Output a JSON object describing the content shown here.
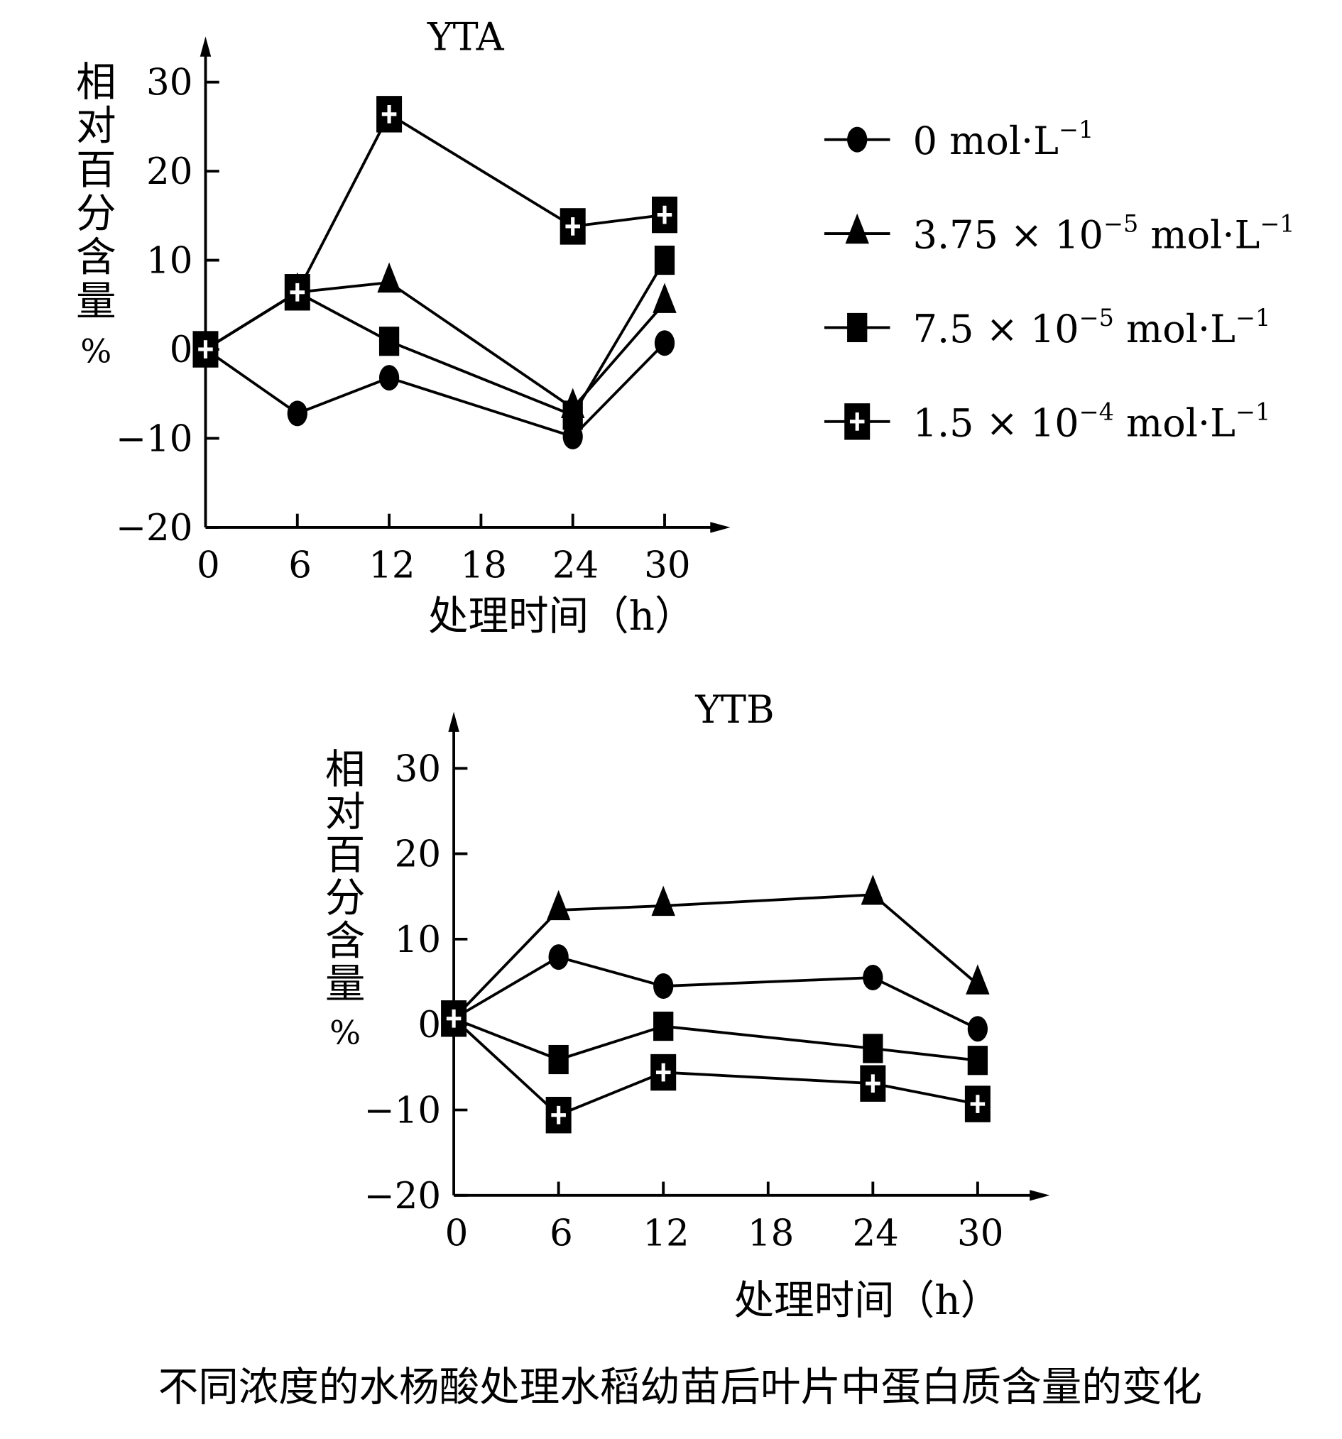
{
  "chart_data": [
    {
      "type": "line",
      "title": "YTA",
      "xlabel": "处理时间（h）",
      "ylabel": "相对百分含量%",
      "x_ticks": [
        0,
        6,
        12,
        18,
        24,
        30
      ],
      "y_ticks": [
        -20,
        -10,
        0,
        10,
        20,
        30
      ],
      "xlim": [
        0,
        30
      ],
      "ylim": [
        -20,
        30
      ],
      "x": [
        0,
        6,
        12,
        24,
        30
      ],
      "series": [
        {
          "name": "0 mol·L⁻¹",
          "marker": "circle",
          "values": [
            0,
            -7.2,
            -3.2,
            -9.8,
            0.7
          ]
        },
        {
          "name": "3.75×10⁻⁵ mol·L⁻¹",
          "marker": "triangle",
          "values": [
            0,
            6.4,
            7.5,
            -6.6,
            5.2
          ]
        },
        {
          "name": "7.5×10⁻⁵ mol·L⁻¹",
          "marker": "square",
          "values": [
            0,
            6.4,
            0.9,
            -7.4,
            10
          ]
        },
        {
          "name": "1.5×10⁻⁴ mol·L⁻¹",
          "marker": "cross-square",
          "values": [
            0,
            6.4,
            26.4,
            13.8,
            15.1
          ]
        }
      ]
    },
    {
      "type": "line",
      "title": "YTB",
      "xlabel": "处理时间（h）",
      "ylabel": "相对百分含量%",
      "x_ticks": [
        0,
        6,
        12,
        18,
        24,
        30
      ],
      "y_ticks": [
        -20,
        -10,
        0,
        10,
        20,
        30
      ],
      "xlim": [
        0,
        30
      ],
      "ylim": [
        -20,
        30
      ],
      "x": [
        0,
        6,
        12,
        24,
        30
      ],
      "series": [
        {
          "name": "0 mol·L⁻¹",
          "marker": "circle",
          "values": [
            0.7,
            7.9,
            4.5,
            5.5,
            -0.5
          ]
        },
        {
          "name": "3.75×10⁻⁵ mol·L⁻¹",
          "marker": "triangle",
          "values": [
            0.7,
            13.4,
            13.9,
            15.2,
            4.7
          ]
        },
        {
          "name": "7.5×10⁻⁵ mol·L⁻¹",
          "marker": "square",
          "values": [
            0.7,
            -4.1,
            -0.2,
            -2.8,
            -4.2
          ]
        },
        {
          "name": "1.5×10⁻⁴ mol·L⁻¹",
          "marker": "cross-square",
          "values": [
            0.7,
            -10.6,
            -5.6,
            -6.9,
            -9.3
          ]
        }
      ]
    }
  ],
  "legend": [
    {
      "base": "0 mol·L",
      "exp": "−1"
    },
    {
      "base": "3.75 × 10",
      "exp1": "−5",
      "unit": " mol·L",
      "exp": "−1"
    },
    {
      "base": "7.5 × 10",
      "exp1": "−5",
      "unit": " mol·L",
      "exp": "−1"
    },
    {
      "base": "1.5 × 10",
      "exp1": "−4",
      "unit": " mol·L",
      "exp": "−1"
    }
  ],
  "ylabel_chars": [
    "相",
    "对",
    "百",
    "分",
    "含",
    "量",
    "%"
  ],
  "caption": "不同浓度的水杨酸处理水稻幼苗后叶片中蛋白质含量的变化"
}
